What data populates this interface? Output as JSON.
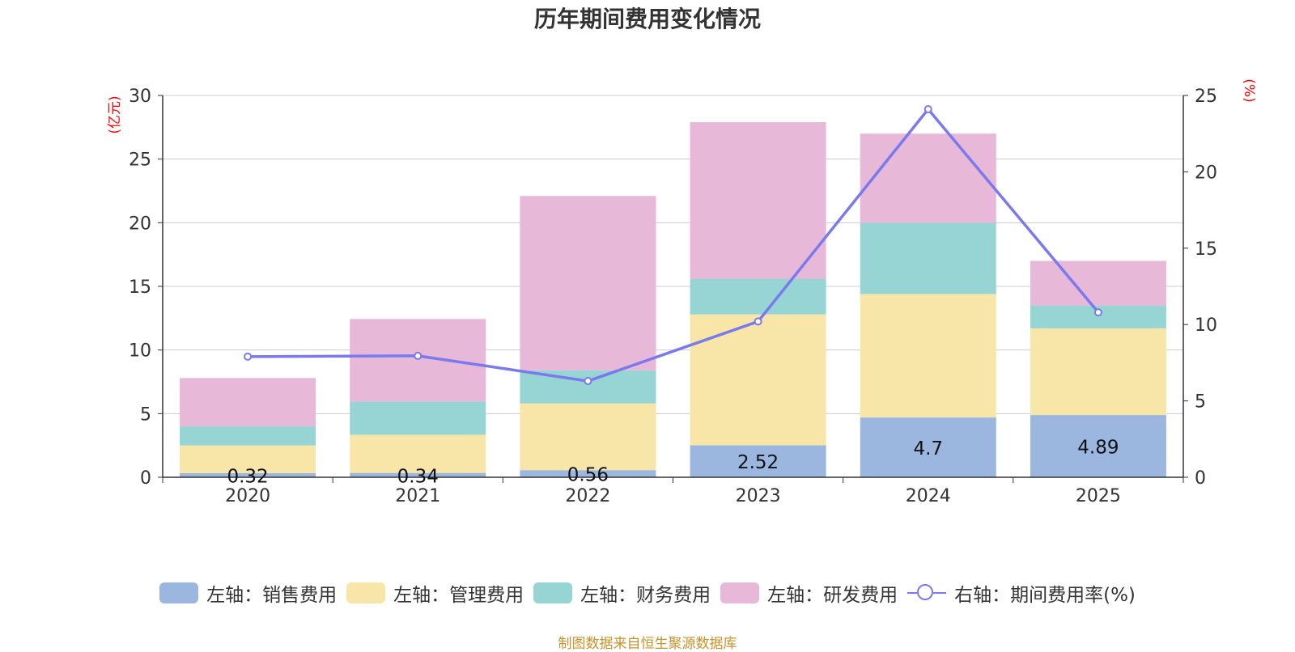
{
  "chart_data": {
    "type": "bar",
    "stacked": true,
    "title": "历年期间费用变化情况",
    "categories": [
      "2020",
      "2021",
      "2022",
      "2023",
      "2024",
      "2025"
    ],
    "y_left_label": "(亿元)",
    "y_right_label": "(%)",
    "y_left_ticks": [
      "0",
      "5",
      "10",
      "15",
      "20",
      "25",
      "30"
    ],
    "y_right_ticks": [
      "0",
      "5",
      "10",
      "15",
      "20",
      "25"
    ],
    "ylim_left": [
      0,
      30
    ],
    "ylim_right": [
      0,
      25
    ],
    "series": [
      {
        "name": "左轴：销售费用",
        "type": "bar",
        "color": "#9bb7e0",
        "values": [
          0.32,
          0.34,
          0.56,
          2.52,
          4.7,
          4.89
        ],
        "labels": [
          "0.32",
          "0.34",
          "0.56",
          "2.52",
          "4.7",
          "4.89"
        ]
      },
      {
        "name": "左轴：管理费用",
        "type": "bar",
        "color": "#f8e6a8",
        "values": [
          2.18,
          3.0,
          5.24,
          10.28,
          9.7,
          6.81
        ]
      },
      {
        "name": "左轴：财务费用",
        "type": "bar",
        "color": "#97d4d4",
        "values": [
          1.5,
          2.6,
          2.6,
          2.8,
          5.6,
          1.8
        ]
      },
      {
        "name": "左轴：研发费用",
        "type": "bar",
        "color": "#e8b8d8",
        "values": [
          3.8,
          6.5,
          13.7,
          12.3,
          7.0,
          3.5
        ]
      },
      {
        "name": "右轴：期间费用率(%)",
        "type": "line",
        "color": "#7a7aee",
        "axis": "right",
        "values": [
          7.9,
          7.95,
          6.3,
          10.2,
          24.1,
          10.8
        ]
      }
    ]
  },
  "source": "制图数据来自恒生聚源数据库"
}
